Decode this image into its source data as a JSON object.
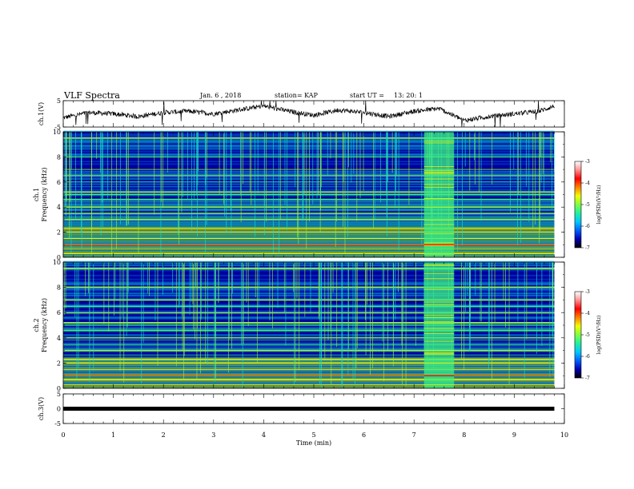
{
  "header": {
    "title": "VLF Spectra",
    "date": "Jan. 6 , 2018",
    "station": "station= KAP",
    "start_label": "start  UT =",
    "start_time": "13: 20: 1"
  },
  "colors": {
    "spectrogram_palette": [
      "#00007a",
      "#0000c8",
      "#0050ff",
      "#00b4ff",
      "#20e0c0",
      "#3cf080",
      "#9cf040",
      "#f0f000",
      "#ff8000",
      "#ff0000"
    ]
  },
  "chart_data": [
    {
      "type": "line",
      "name": "ch1-waveform",
      "ylabel": "ch.1(V)",
      "ylim": [
        -5,
        5
      ],
      "yticks": [
        "5",
        "-5"
      ],
      "x": [
        0,
        0.5,
        1,
        1.5,
        2,
        2.5,
        3,
        3.5,
        4,
        4.5,
        5,
        5.5,
        6,
        6.5,
        7,
        7.5,
        8,
        8.5,
        9,
        9.5,
        9.8
      ],
      "y": [
        -1.5,
        0.5,
        0,
        -1,
        0.5,
        1,
        0,
        1.5,
        3,
        1,
        -0.5,
        1.5,
        0.5,
        -1,
        1,
        2,
        -2.5,
        -1,
        0,
        1,
        3
      ]
    },
    {
      "type": "heatmap",
      "name": "ch1-spectrogram",
      "ylabel": "ch.1\nFrequency (kHz)",
      "ylim": [
        0,
        10
      ],
      "yticks": [
        "0",
        "2",
        "4",
        "6",
        "8",
        "10"
      ],
      "colorbar": {
        "label": "log(PSD)(V²/Hz)",
        "range": [
          -7,
          -3
        ],
        "ticks": [
          "-3",
          "-4",
          "-5",
          "-6",
          "-7"
        ]
      },
      "bright_band_min": [
        7.2,
        7.8
      ]
    },
    {
      "type": "heatmap",
      "name": "ch2-spectrogram",
      "ylabel": "ch.2\nFrequency (kHz)",
      "ylim": [
        0,
        10
      ],
      "yticks": [
        "0",
        "2",
        "4",
        "6",
        "8",
        "10"
      ],
      "colorbar": {
        "label": "log(PSD)(V²/Hz)",
        "range": [
          -7,
          -3
        ],
        "ticks": [
          "-3",
          "-4",
          "-5",
          "-6",
          "-7"
        ]
      },
      "bright_band_min": [
        7.2,
        7.8
      ]
    },
    {
      "type": "line",
      "name": "ch3-waveform",
      "ylabel": "ch.3(V)",
      "ylim": [
        -5,
        5
      ],
      "yticks": [
        "5",
        "0",
        "-5"
      ],
      "x": [
        0,
        9.8
      ],
      "y": [
        0,
        0
      ]
    }
  ],
  "xaxis": {
    "label": "Time  (min)",
    "ticks": [
      "0",
      "1",
      "2",
      "3",
      "4",
      "5",
      "6",
      "7",
      "8",
      "9",
      "10"
    ],
    "range": [
      0,
      10
    ],
    "data_end": 9.8
  }
}
